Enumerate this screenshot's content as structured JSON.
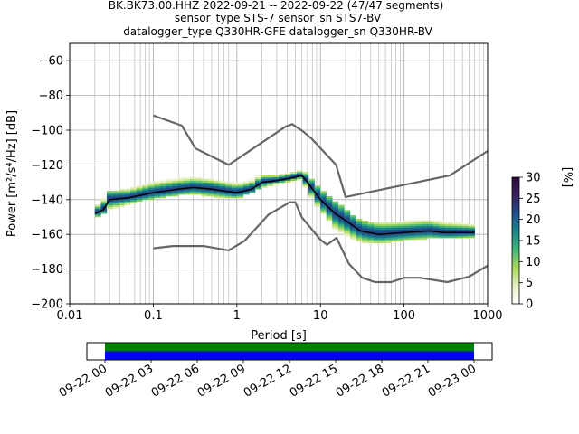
{
  "title_lines": [
    "BK.BK73.00.HHZ   2022-09-21 -- 2022-09-22  (47/47 segments)",
    "sensor_type STS-7 sensor_sn STS7-BV",
    "datalogger_type Q330HR-GFE datalogger_sn Q330HR-BV"
  ],
  "colors": {
    "model_line": "#666666",
    "mean_line": "#000000",
    "grid": "#b0b0b0",
    "coverage_green": "#008000",
    "coverage_blue": "#0000ff",
    "colormap": [
      "#ffffff",
      "#e6f0c0",
      "#a6d854",
      "#3fb77a",
      "#18868a",
      "#1f4e8c",
      "#3a1f5c",
      "#2a0a3a"
    ]
  },
  "chart_data": [
    {
      "type": "heatmap",
      "title": "",
      "xlabel": "Period [s]",
      "ylabel": "Power [m²/s⁴/Hz] [dB]",
      "xscale": "log",
      "xlim": [
        0.01,
        1000
      ],
      "ylim": [
        -200,
        -50
      ],
      "x_ticks": [
        0.01,
        0.1,
        1,
        10,
        100,
        1000
      ],
      "x_tick_labels": [
        "0.01",
        "0.1",
        "1",
        "10",
        "100",
        "1000"
      ],
      "y_ticks": [
        -200,
        -180,
        -160,
        -140,
        -120,
        -100,
        -80,
        -60
      ],
      "y_tick_labels": [
        "−200",
        "−180",
        "−160",
        "−140",
        "−120",
        "−100",
        "−80",
        "−60"
      ],
      "grid": true,
      "colorbar": {
        "label": "[%]",
        "range": [
          0,
          30
        ],
        "ticks": [
          0,
          5,
          10,
          15,
          20,
          25,
          30
        ],
        "tick_labels": [
          "0",
          "5",
          "10",
          "15",
          "20",
          "25",
          "30"
        ]
      },
      "series": [
        {
          "name": "",
          "role": "model-high",
          "x": [
            0.1,
            0.22,
            0.32,
            0.8,
            3.8,
            4.6,
            6.3,
            7.9,
            15.4,
            20,
            354.8,
            1000
          ],
          "y": [
            -91.5,
            -97.4,
            -110.5,
            -120,
            -98,
            -96.5,
            -101,
            -105,
            -120,
            -138.5,
            -126,
            -112
          ]
        },
        {
          "name": "",
          "role": "model-low",
          "x": [
            0.1,
            0.17,
            0.4,
            0.8,
            1.24,
            2.4,
            4.3,
            5,
            6,
            10,
            12,
            15.6,
            21.9,
            31.6,
            45,
            70,
            101,
            154,
            328,
            600,
            1000
          ],
          "y": [
            -168,
            -166.7,
            -166.7,
            -169.2,
            -163.7,
            -148.6,
            -141.5,
            -141.5,
            -150.2,
            -163,
            -166,
            -162,
            -177,
            -185,
            -187.5,
            -187.5,
            -185,
            -185,
            -187.5,
            -184.4,
            -178
          ]
        },
        {
          "name": "",
          "role": "mean",
          "x": [
            0.02,
            0.025,
            0.03,
            0.05,
            0.1,
            0.2,
            0.3,
            0.5,
            0.7,
            1,
            1.5,
            2,
            3,
            4,
            5,
            6,
            7,
            10,
            15,
            20,
            30,
            50,
            100,
            200,
            300,
            500,
            700
          ],
          "y": [
            -148,
            -146,
            -140,
            -139,
            -136,
            -134,
            -133,
            -134,
            -135,
            -136,
            -134,
            -130,
            -129,
            -128,
            -127,
            -126,
            -130,
            -140,
            -148,
            -152,
            -158,
            -160,
            -159,
            -158,
            -159,
            -159,
            -159
          ]
        },
        {
          "name": "",
          "role": "psd-density-band",
          "x": [
            0.02,
            0.03,
            0.05,
            0.1,
            0.2,
            0.3,
            0.5,
            1,
            2,
            3,
            5,
            6,
            7,
            10,
            15,
            20,
            30,
            50,
            100,
            200,
            300,
            500,
            700
          ],
          "y_low": [
            -151,
            -146,
            -142,
            -139,
            -137,
            -136,
            -138,
            -139,
            -133,
            -131,
            -129,
            -128,
            -135,
            -146,
            -156,
            -160,
            -164,
            -165,
            -163,
            -162,
            -162,
            -162,
            -161
          ],
          "y_high": [
            -146,
            -137,
            -135,
            -131,
            -129,
            -128,
            -130,
            -132,
            -127,
            -127,
            -125,
            -124,
            -127,
            -135,
            -142,
            -147,
            -153,
            -155,
            -154,
            -153,
            -154,
            -155,
            -155
          ]
        }
      ]
    },
    {
      "type": "bar",
      "title": "",
      "xlabel": "",
      "ylabel": "",
      "x_tick_labels": [
        "09-22 00",
        "09-22 03",
        "09-22 06",
        "09-22 09",
        "09-22 12",
        "09-22 15",
        "09-22 18",
        "09-22 21",
        "09-23 00"
      ],
      "coverage_hours": [
        0,
        24
      ],
      "series": [
        {
          "name": "",
          "role": "data-available",
          "color_key": "coverage_green",
          "values": [
            24
          ]
        },
        {
          "name": "",
          "role": "data-used",
          "color_key": "coverage_blue",
          "values": [
            24
          ]
        }
      ]
    }
  ]
}
